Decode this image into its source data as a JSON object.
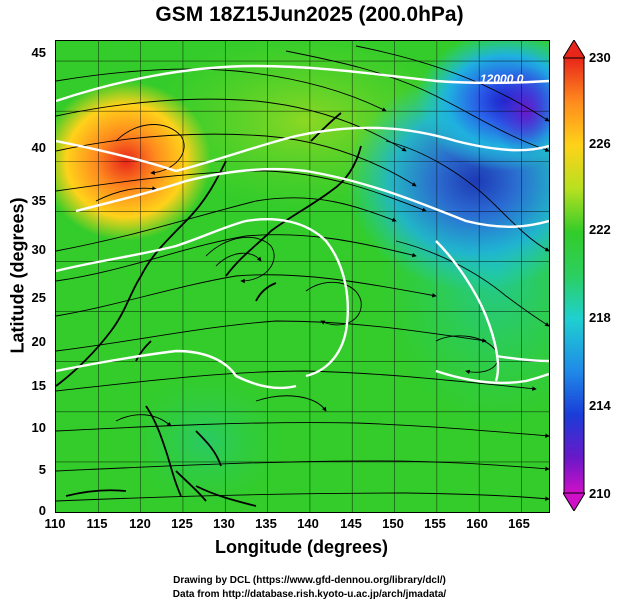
{
  "title": "GSM 18Z15Jun2025 (200.0hPa)",
  "x_axis": {
    "label": "Longitude (degrees)",
    "ticks": [
      "110",
      "115",
      "120",
      "125",
      "130",
      "135",
      "140",
      "145",
      "150",
      "155",
      "160",
      "165"
    ]
  },
  "y_axis": {
    "label": "Latitude  (degrees)",
    "ticks": [
      "0",
      "5",
      "10",
      "15",
      "20",
      "25",
      "30",
      "35",
      "40",
      "45"
    ]
  },
  "colorbar": {
    "ticks": [
      "230",
      "226",
      "222",
      "218",
      "214",
      "210"
    ]
  },
  "contour_label": "12000.0",
  "credits": {
    "line1": "Drawing by DCL (https://www.gfd-dennou.org/library/dcl/)",
    "line2": "Data from http://database.rish.kyoto-u.ac.jp/arch/jmadata/"
  },
  "colors": {
    "green": "#33cc2a",
    "yellow": "#ffd21a",
    "orange": "#ff8a1e",
    "red": "#e8261a",
    "cyan": "#1fd0d0",
    "blue": "#1a3dd8",
    "magenta": "#d010c8"
  }
}
